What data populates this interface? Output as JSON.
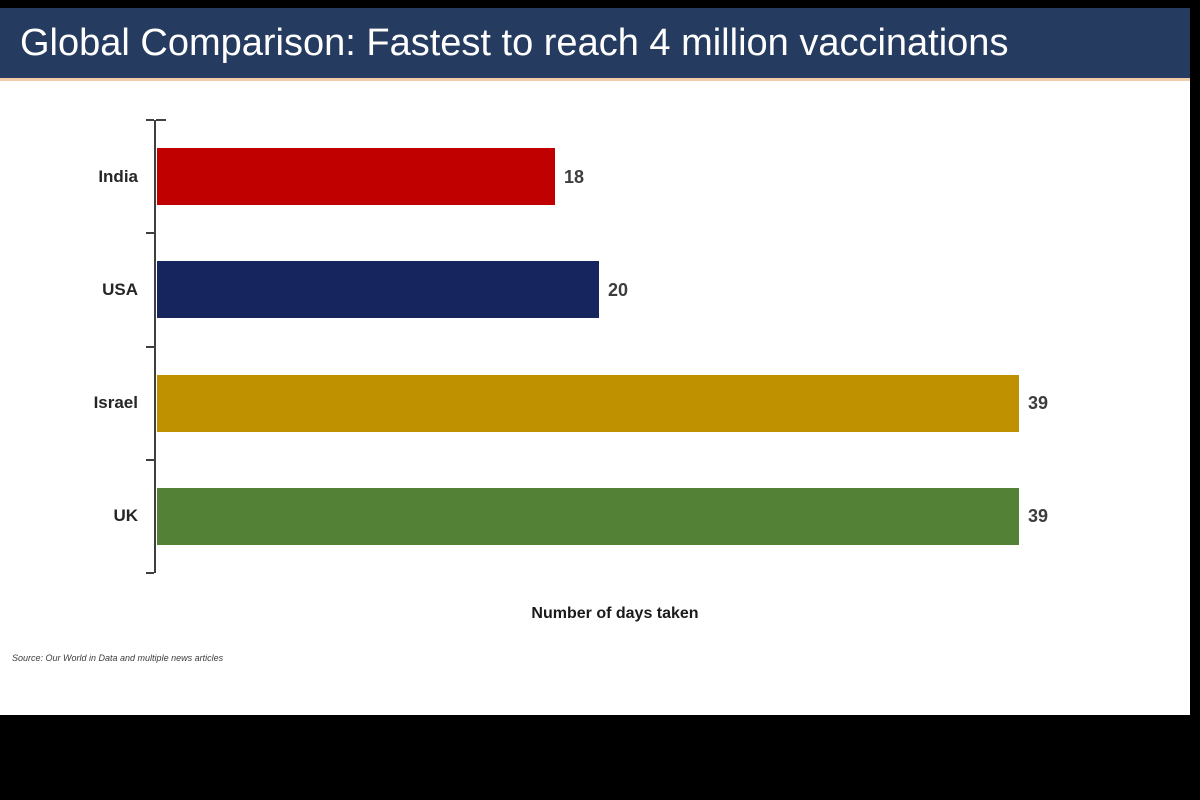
{
  "title": "Global Comparison: Fastest to reach 4 million vaccinations",
  "source": "Source: Our World in Data and multiple news articles",
  "chart_data": {
    "type": "bar",
    "orientation": "horizontal",
    "title": "Global Comparison: Fastest to reach 4 million vaccinations",
    "categories": [
      "India",
      "USA",
      "Israel",
      "UK"
    ],
    "values": [
      18,
      20,
      39,
      39
    ],
    "data_labels": [
      "18",
      "20",
      "39",
      "39"
    ],
    "bar_colors": [
      "#c00000",
      "#17255e",
      "#bf9000",
      "#538135"
    ],
    "xlabel": "Number of days taken",
    "ylabel": "",
    "xlim": [
      0,
      39
    ],
    "grid": false,
    "legend": false,
    "source_note": "Source: Our World in Data and multiple news articles"
  },
  "colors": {
    "frame_bg": "#000000",
    "slide_bg": "#ffffff",
    "title_bar_bg": "#253b60",
    "title_text": "#ffffff",
    "title_underline": "#f2cba8",
    "axis_line": "#3f3f3f",
    "category_text": "#262626",
    "value_text": "#3d3d3d"
  }
}
